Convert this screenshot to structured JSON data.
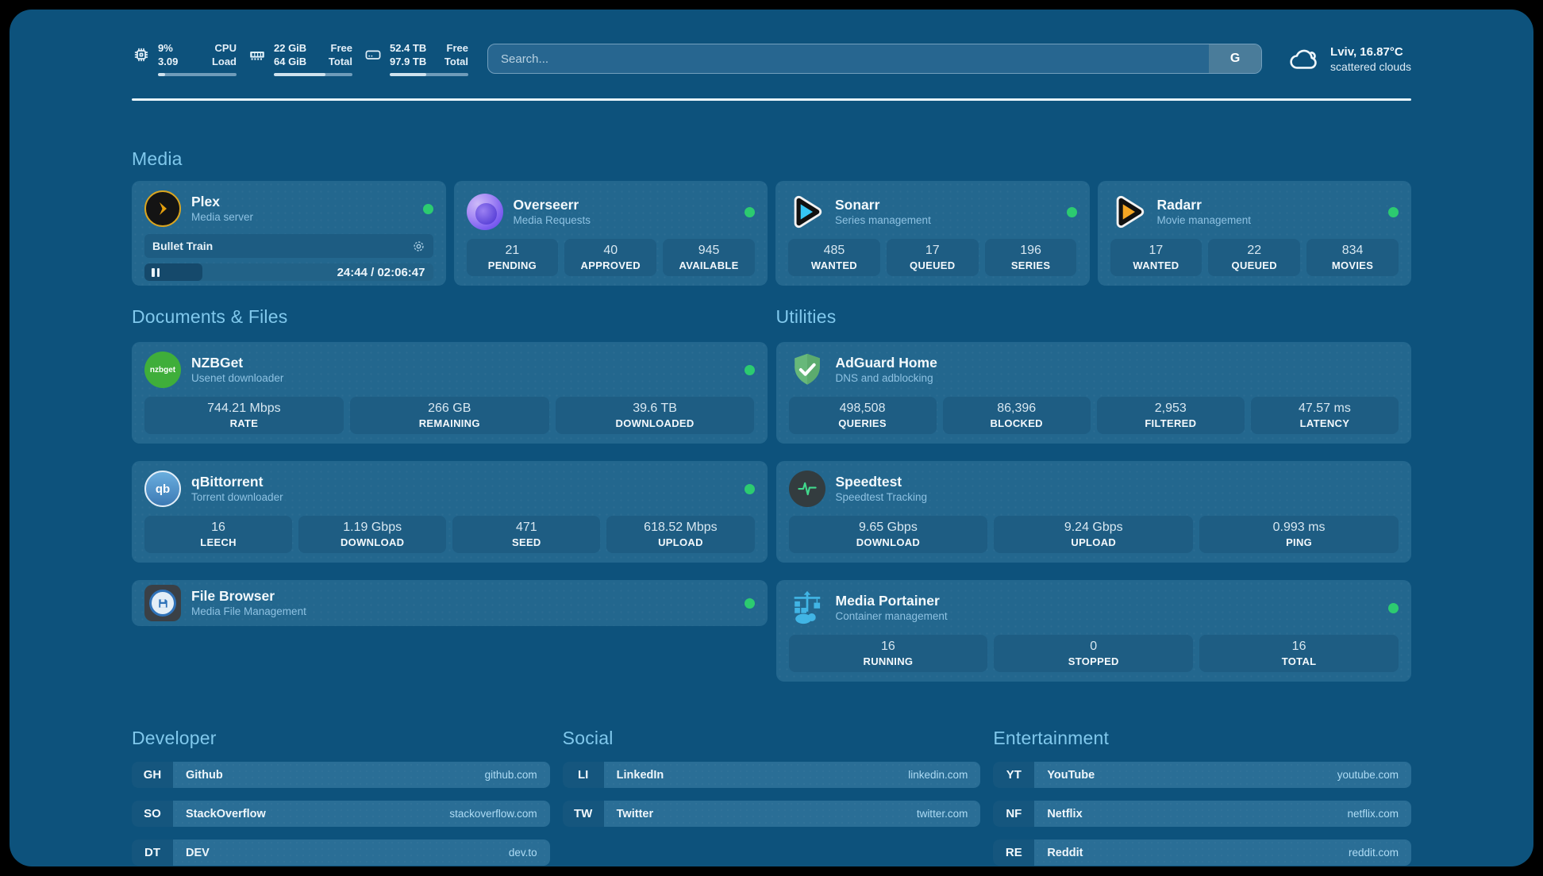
{
  "theme": {
    "background": "#000000",
    "panel": "#0d527c",
    "card": "#23678e",
    "tile": "#1e5d83",
    "accent": "#80c8ec",
    "status_online": "#2ccb70"
  },
  "topbar": {
    "system": [
      {
        "icon": "cpu-icon",
        "values": [
          "9%",
          "3.09"
        ],
        "labels": [
          "CPU",
          "Load"
        ],
        "usage_pct": 9
      },
      {
        "icon": "memory-icon",
        "values": [
          "22 GiB",
          "64 GiB"
        ],
        "labels": [
          "Free",
          "Total"
        ],
        "usage_pct": 66
      },
      {
        "icon": "disk-icon",
        "values": [
          "52.4 TB",
          "97.9 TB"
        ],
        "labels": [
          "Free",
          "Total"
        ],
        "usage_pct": 46
      }
    ],
    "search": {
      "placeholder": "Search...",
      "engine": "G"
    },
    "weather": {
      "summary": "Lviv, 16.87°C",
      "description": "scattered clouds"
    }
  },
  "media": {
    "title": "Media",
    "plex": {
      "name": "Plex",
      "subtitle": "Media server",
      "status": "online",
      "now_playing": {
        "title": "Bullet Train",
        "state": "paused",
        "time": "24:44 / 02:06:47",
        "progress_pct": 20
      }
    },
    "overseerr": {
      "name": "Overseerr",
      "subtitle": "Media Requests",
      "status": "online",
      "stats": [
        {
          "value": "21",
          "label": "PENDING"
        },
        {
          "value": "40",
          "label": "APPROVED"
        },
        {
          "value": "945",
          "label": "AVAILABLE"
        }
      ]
    },
    "sonarr": {
      "name": "Sonarr",
      "subtitle": "Series management",
      "status": "online",
      "stats": [
        {
          "value": "485",
          "label": "WANTED"
        },
        {
          "value": "17",
          "label": "QUEUED"
        },
        {
          "value": "196",
          "label": "SERIES"
        }
      ]
    },
    "radarr": {
      "name": "Radarr",
      "subtitle": "Movie management",
      "status": "online",
      "stats": [
        {
          "value": "17",
          "label": "WANTED"
        },
        {
          "value": "22",
          "label": "QUEUED"
        },
        {
          "value": "834",
          "label": "MOVIES"
        }
      ]
    }
  },
  "documents": {
    "title": "Documents & Files",
    "nzbget": {
      "name": "NZBGet",
      "subtitle": "Usenet downloader",
      "status": "online",
      "icon_text": "nzbget",
      "stats": [
        {
          "value": "744.21 Mbps",
          "label": "RATE"
        },
        {
          "value": "266 GB",
          "label": "REMAINING"
        },
        {
          "value": "39.6 TB",
          "label": "DOWNLOADED"
        }
      ]
    },
    "qbittorrent": {
      "name": "qBittorrent",
      "subtitle": "Torrent downloader",
      "status": "online",
      "icon_text": "qb",
      "stats": [
        {
          "value": "16",
          "label": "LEECH"
        },
        {
          "value": "1.19 Gbps",
          "label": "DOWNLOAD"
        },
        {
          "value": "471",
          "label": "SEED"
        },
        {
          "value": "618.52 Mbps",
          "label": "UPLOAD"
        }
      ]
    },
    "filebrowser": {
      "name": "File Browser",
      "subtitle": "Media File Management",
      "status": "online"
    }
  },
  "utilities": {
    "title": "Utilities",
    "adguard": {
      "name": "AdGuard Home",
      "subtitle": "DNS and adblocking",
      "stats": [
        {
          "value": "498,508",
          "label": "QUERIES"
        },
        {
          "value": "86,396",
          "label": "BLOCKED"
        },
        {
          "value": "2,953",
          "label": "FILTERED"
        },
        {
          "value": "47.57 ms",
          "label": "LATENCY"
        }
      ]
    },
    "speedtest": {
      "name": "Speedtest",
      "subtitle": "Speedtest Tracking",
      "stats": [
        {
          "value": "9.65 Gbps",
          "label": "DOWNLOAD"
        },
        {
          "value": "9.24 Gbps",
          "label": "UPLOAD"
        },
        {
          "value": "0.993 ms",
          "label": "PING"
        }
      ]
    },
    "portainer": {
      "name": "Media Portainer",
      "subtitle": "Container management",
      "status": "online",
      "stats": [
        {
          "value": "16",
          "label": "RUNNING"
        },
        {
          "value": "0",
          "label": "STOPPED"
        },
        {
          "value": "16",
          "label": "TOTAL"
        }
      ]
    }
  },
  "bookmarks": [
    {
      "title": "Developer",
      "links": [
        {
          "abbr": "GH",
          "name": "Github",
          "url": "github.com"
        },
        {
          "abbr": "SO",
          "name": "StackOverflow",
          "url": "stackoverflow.com"
        },
        {
          "abbr": "DT",
          "name": "DEV",
          "url": "dev.to"
        }
      ]
    },
    {
      "title": "Social",
      "links": [
        {
          "abbr": "LI",
          "name": "LinkedIn",
          "url": "linkedin.com"
        },
        {
          "abbr": "TW",
          "name": "Twitter",
          "url": "twitter.com"
        }
      ]
    },
    {
      "title": "Entertainment",
      "links": [
        {
          "abbr": "YT",
          "name": "YouTube",
          "url": "youtube.com"
        },
        {
          "abbr": "NF",
          "name": "Netflix",
          "url": "netflix.com"
        },
        {
          "abbr": "RE",
          "name": "Reddit",
          "url": "reddit.com"
        }
      ]
    }
  ]
}
